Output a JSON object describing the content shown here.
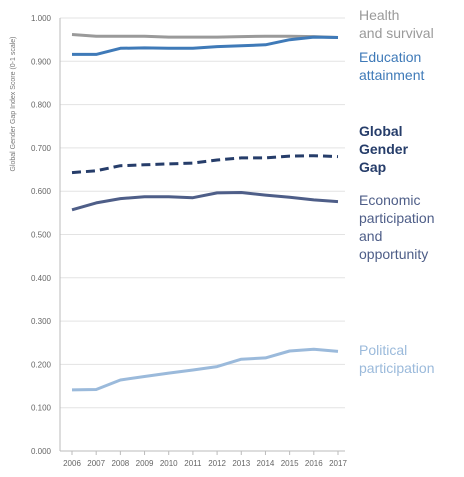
{
  "chart_data": {
    "type": "line",
    "ylabel": "Global Gender Gap Index Score (0-1 scale)",
    "xlabel": "",
    "ylim": [
      0,
      1
    ],
    "y_ticks": [
      "0.000",
      "0.100",
      "0.200",
      "0.300",
      "0.400",
      "0.500",
      "0.600",
      "0.700",
      "0.800",
      "0.900",
      "1.000"
    ],
    "x": [
      "2006",
      "2007",
      "2008",
      "2009",
      "2010",
      "2011",
      "2012",
      "2013",
      "2014",
      "2015",
      "2016",
      "2017"
    ],
    "grid": "horizontal",
    "legend": "right",
    "series": [
      {
        "id": "health",
        "name_lines": [
          "Health",
          "and survival"
        ],
        "color": "#9a9a9a",
        "dash": false,
        "values": [
          0.962,
          0.958,
          0.958,
          0.958,
          0.956,
          0.956,
          0.956,
          0.957,
          0.958,
          0.958,
          0.957,
          0.955
        ]
      },
      {
        "id": "education",
        "name_lines": [
          "Education",
          "attainment"
        ],
        "color": "#3f7ab8",
        "dash": false,
        "values": [
          0.916,
          0.916,
          0.93,
          0.931,
          0.93,
          0.93,
          0.934,
          0.936,
          0.938,
          0.95,
          0.956,
          0.955
        ]
      },
      {
        "id": "global",
        "name_lines": [
          "Global",
          "Gender",
          "Gap"
        ],
        "color": "#263d6a",
        "dash": true,
        "values": [
          0.643,
          0.647,
          0.659,
          0.661,
          0.663,
          0.665,
          0.672,
          0.677,
          0.677,
          0.681,
          0.682,
          0.68
        ]
      },
      {
        "id": "economic",
        "name_lines": [
          "Economic",
          "participation",
          "and",
          "opportunity"
        ],
        "color": "#4e5e88",
        "dash": false,
        "values": [
          0.557,
          0.573,
          0.583,
          0.587,
          0.587,
          0.585,
          0.596,
          0.597,
          0.591,
          0.586,
          0.58,
          0.576
        ]
      },
      {
        "id": "political",
        "name_lines": [
          "Political",
          "participation"
        ],
        "color": "#9bbadb",
        "dash": false,
        "values": [
          0.141,
          0.142,
          0.164,
          0.172,
          0.18,
          0.187,
          0.195,
          0.212,
          0.215,
          0.231,
          0.235,
          0.23
        ]
      }
    ]
  }
}
